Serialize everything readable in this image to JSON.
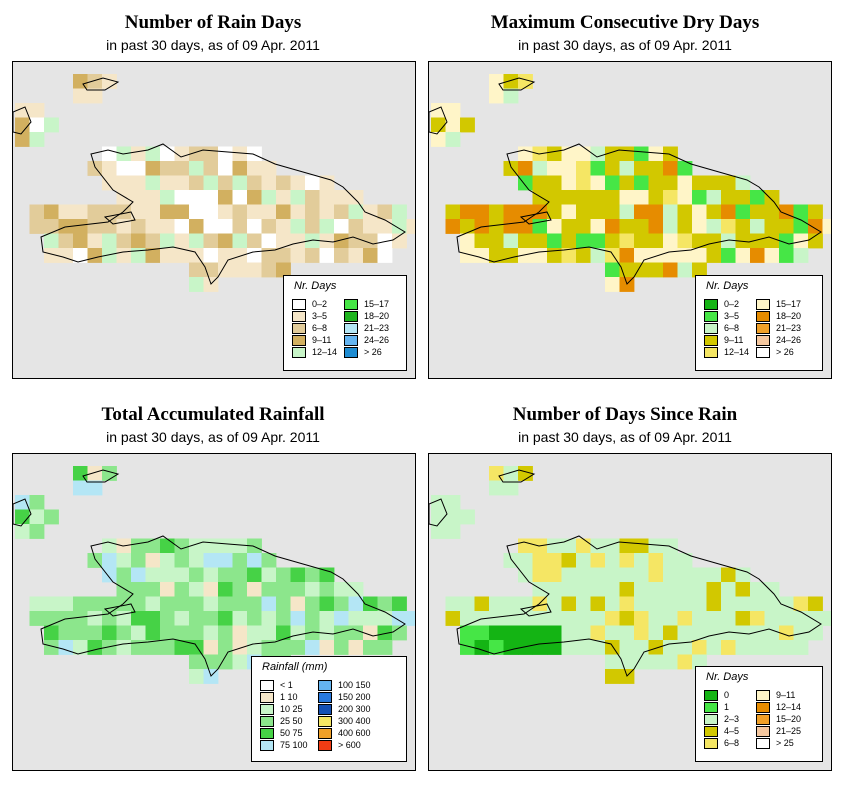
{
  "panels": [
    {
      "title": "Number of Rain Days",
      "subtitle": "in past 30 days, as of  09 Apr. 2011",
      "legend": {
        "title": "Nr. Days",
        "items": [
          {
            "label": "0–2",
            "color": "#ffffff"
          },
          {
            "label": "3–5",
            "color": "#f5e6c8"
          },
          {
            "label": "6–8",
            "color": "#e2cc9a"
          },
          {
            "label": "9–11",
            "color": "#d2b060"
          },
          {
            "label": "12–14",
            "color": "#c8f5c8"
          },
          {
            "label": "15–17",
            "color": "#46e646"
          },
          {
            "label": "18–20",
            "color": "#1eb41e"
          },
          {
            "label": "21–23",
            "color": "#b4e6f5"
          },
          {
            "label": "24–26",
            "color": "#64b4f0"
          },
          {
            "label": "> 26",
            "color": "#1e8cd2"
          }
        ]
      }
    },
    {
      "title": "Maximum Consecutive Dry Days",
      "subtitle": "in past 30 days, as of  09 Apr. 2011",
      "legend": {
        "title": "Nr. Days",
        "items": [
          {
            "label": "0–2",
            "color": "#14b414"
          },
          {
            "label": "3–5",
            "color": "#46e646"
          },
          {
            "label": "6–8",
            "color": "#c8f5c8"
          },
          {
            "label": "9–11",
            "color": "#d2c800"
          },
          {
            "label": "12–14",
            "color": "#f5e664"
          },
          {
            "label": "15–17",
            "color": "#fff5c8"
          },
          {
            "label": "18–20",
            "color": "#e68c00"
          },
          {
            "label": "21–23",
            "color": "#f0a028"
          },
          {
            "label": "24–26",
            "color": "#f5c8a0"
          },
          {
            "label": "> 26",
            "color": "#ffffff"
          }
        ]
      }
    },
    {
      "title": "Total Accumulated Rainfall",
      "subtitle": "in past 30 days, as of  09 Apr. 2011",
      "legend": {
        "title": "Rainfall (mm)",
        "items": [
          {
            "label": "< 1",
            "color": "#ffffff"
          },
          {
            "label": "1    10",
            "color": "#f5e6c8"
          },
          {
            "label": "10    25",
            "color": "#c8f5c8"
          },
          {
            "label": "25    50",
            "color": "#8ce68c"
          },
          {
            "label": "50    75",
            "color": "#46d246"
          },
          {
            "label": "75  100",
            "color": "#b4e6f5"
          },
          {
            "label": "100  150",
            "color": "#64b4f0"
          },
          {
            "label": "150  200",
            "color": "#2878dc"
          },
          {
            "label": "200  300",
            "color": "#1450b4"
          },
          {
            "label": "300  400",
            "color": "#f5e664"
          },
          {
            "label": "400  600",
            "color": "#f0a028"
          },
          {
            "label": "> 600",
            "color": "#f03c14"
          }
        ]
      }
    },
    {
      "title": "Number of Days Since Rain",
      "subtitle": "in past 30 days, as of  09 Apr. 2011",
      "legend": {
        "title": "Nr. Days",
        "items": [
          {
            "label": "0",
            "color": "#14b414"
          },
          {
            "label": "1",
            "color": "#46e646"
          },
          {
            "label": "2–3",
            "color": "#c8f5c8"
          },
          {
            "label": "4–5",
            "color": "#d2c800"
          },
          {
            "label": "6–8",
            "color": "#f5e664"
          },
          {
            "label": "9–11",
            "color": "#fff5c8"
          },
          {
            "label": "12–14",
            "color": "#e68c00"
          },
          {
            "label": "15–20",
            "color": "#f0a028"
          },
          {
            "label": "21–25",
            "color": "#f5c8a0"
          },
          {
            "label": "> 25",
            "color": "#ffffff"
          }
        ]
      }
    }
  ]
}
